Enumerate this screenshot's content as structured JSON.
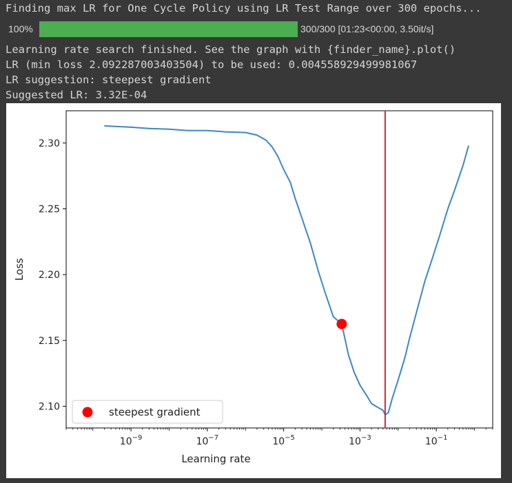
{
  "cell_output": {
    "title": "Finding max LR for One Cycle Policy using LR Test Range over 300 epochs...",
    "progress": {
      "percent_label": "100%",
      "fraction": 1.0,
      "status": "300/300 [01:23<00:00, 3.50it/s]"
    },
    "lines": [
      "Learning rate search finished. See the graph with {finder_name}.plot()",
      "LR (min loss 2.092287003403504) to be used: 0.004558929499981067",
      "LR suggestion: steepest gradient",
      "Suggested LR: 3.32E-04"
    ]
  },
  "colors": {
    "background": "#383838",
    "text": "#d5d5d5",
    "progress_fill": "#4cae50",
    "progress_track": "#4a4a4a",
    "line": "#3a86c8",
    "vline": "#d62728",
    "marker": "#ff0000"
  },
  "chart_data": {
    "type": "line",
    "xscale": "log",
    "xlabel": "Learning rate",
    "ylabel": "Loss",
    "xlim": [
      2e-11,
      3.0
    ],
    "ylim": [
      2.0835,
      2.3245
    ],
    "xticks": [
      1e-09,
      1e-07,
      1e-05,
      0.001,
      0.1
    ],
    "xtick_labels": [
      {
        "base": "10",
        "exp": "−9"
      },
      {
        "base": "10",
        "exp": "−7"
      },
      {
        "base": "10",
        "exp": "−5"
      },
      {
        "base": "10",
        "exp": "−3"
      },
      {
        "base": "10",
        "exp": "−1"
      }
    ],
    "yticks": [
      2.1,
      2.15,
      2.2,
      2.25,
      2.3
    ],
    "ytick_labels": [
      "2.10",
      "2.15",
      "2.20",
      "2.25",
      "2.30"
    ],
    "series": [
      {
        "x": [
          2e-10,
          5e-10,
          1e-09,
          3e-09,
          1e-08,
          3e-08,
          1e-07,
          3e-07,
          1e-06,
          2e-06,
          3.5e-06,
          5e-06,
          7e-06,
          1e-05,
          1.5e-05,
          2e-05,
          3e-05,
          5e-05,
          8e-05,
          0.00012,
          0.0002,
          0.000332,
          0.0005,
          0.0007,
          0.001,
          0.0015,
          0.002,
          0.003,
          0.004,
          0.00456,
          0.0055,
          0.007,
          0.01,
          0.015,
          0.02,
          0.03,
          0.05,
          0.08,
          0.12,
          0.2,
          0.3,
          0.5,
          0.7
        ],
        "y": [
          2.313,
          2.3125,
          2.312,
          2.311,
          2.3105,
          2.3095,
          2.3095,
          2.3085,
          2.308,
          2.306,
          2.302,
          2.297,
          2.29,
          2.28,
          2.27,
          2.258,
          2.243,
          2.224,
          2.203,
          2.187,
          2.168,
          2.1625,
          2.139,
          2.126,
          2.116,
          2.108,
          2.102,
          2.099,
          2.097,
          2.0935,
          2.095,
          2.106,
          2.12,
          2.137,
          2.152,
          2.171,
          2.195,
          2.213,
          2.229,
          2.25,
          2.264,
          2.283,
          2.298
        ]
      }
    ],
    "vline_x": 0.004558929499981067,
    "marker": {
      "x": 0.000332,
      "y": 2.1625
    },
    "legend": {
      "label": "steepest gradient",
      "loc": "lower left"
    },
    "grid": false
  }
}
